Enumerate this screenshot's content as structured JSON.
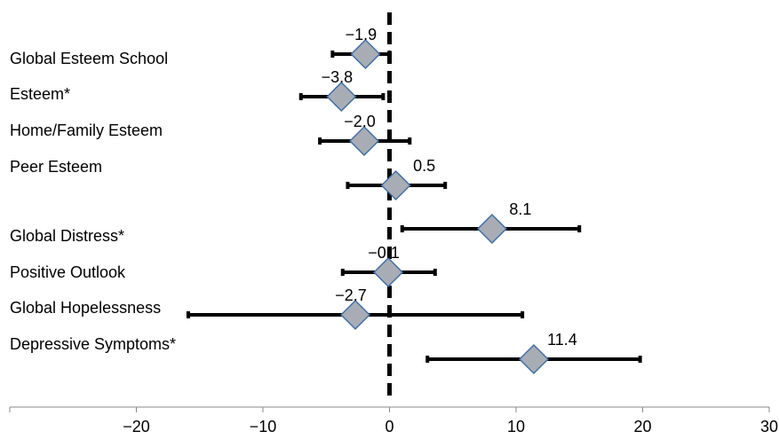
{
  "chart_data": {
    "type": "forest",
    "xlim": [
      -30,
      30
    ],
    "x_ticks": [
      "",
      "−20",
      "−10",
      "0",
      "10",
      "20",
      "30"
    ],
    "x_tick_values": [
      -30,
      -20,
      -10,
      0,
      10,
      20,
      30
    ],
    "reference_line": 0,
    "grid": false,
    "rows": [
      {
        "label": "Global Esteem School",
        "estimate": -1.9,
        "ci_low": -4.5,
        "ci_high": 0.0,
        "value_label": "−1.9"
      },
      {
        "label": "Esteem*",
        "estimate": -3.8,
        "ci_low": -7.0,
        "ci_high": -0.5,
        "value_label": "−3.8"
      },
      {
        "label": "Home/Family Esteem",
        "estimate": -2.0,
        "ci_low": -5.5,
        "ci_high": 1.6,
        "value_label": "−2.0"
      },
      {
        "label": "Peer Esteem",
        "estimate": 0.5,
        "ci_low": -3.3,
        "ci_high": 4.4,
        "value_label": "0.5"
      },
      {
        "label": "Global Distress*",
        "estimate": 8.1,
        "ci_low": 1.0,
        "ci_high": 15.0,
        "value_label": "8.1"
      },
      {
        "label": "Positive Outlook",
        "estimate": -0.1,
        "ci_low": -3.7,
        "ci_high": 3.6,
        "value_label": "−0.1"
      },
      {
        "label": "Global Hopelessness",
        "estimate": -2.7,
        "ci_low": -15.9,
        "ci_high": 10.5,
        "value_label": "−2.7"
      },
      {
        "label": "Depressive Symptoms*",
        "estimate": 11.4,
        "ci_low": 3.0,
        "ci_high": 19.8,
        "value_label": "11.4"
      }
    ],
    "colors": {
      "marker_fill": "#a8adb5",
      "marker_stroke": "#3f6fa8",
      "line": "#000000"
    }
  }
}
